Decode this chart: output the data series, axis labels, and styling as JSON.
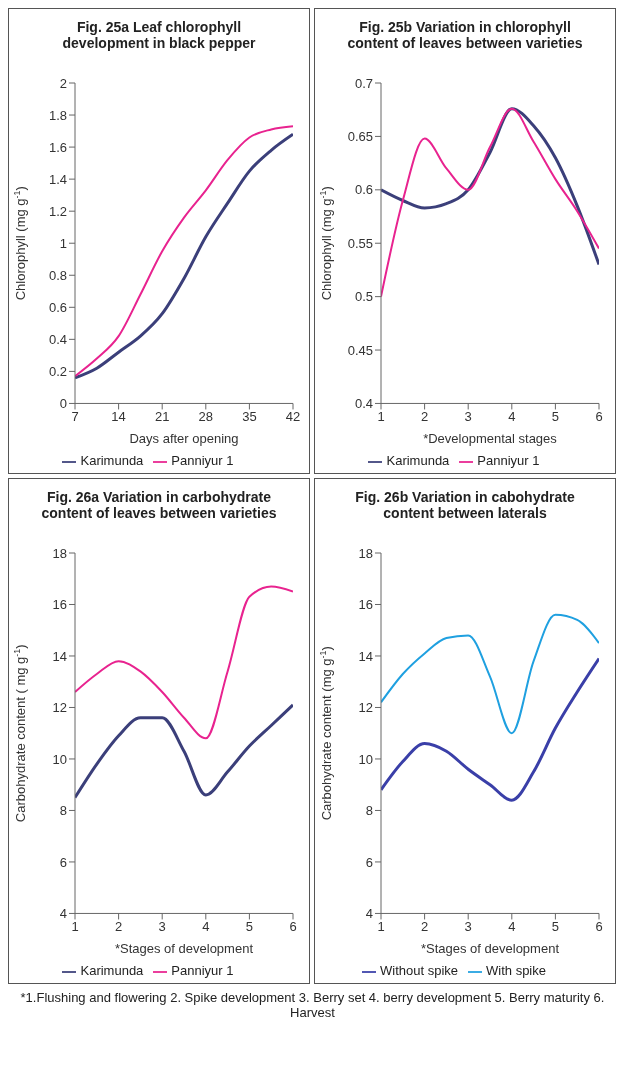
{
  "chart_data": [
    {
      "type": "line",
      "title": "Fig. 25a Leaf chlorophyll development in black pepper",
      "xlabel": "Days after opening",
      "ylabel": "Chlorophyll (mg g$^{-1}$)",
      "x": [
        7,
        10.5,
        14,
        17.5,
        21,
        24.5,
        28,
        31.5,
        35,
        38.5,
        42
      ],
      "series": [
        {
          "name": "Karimunda",
          "color": "#3b3f7a",
          "values": [
            0.16,
            0.22,
            0.32,
            0.42,
            0.56,
            0.78,
            1.04,
            1.25,
            1.45,
            1.58,
            1.68
          ]
        },
        {
          "name": "Panniyur 1",
          "color": "#e8238f",
          "values": [
            0.17,
            0.28,
            0.42,
            0.68,
            0.95,
            1.16,
            1.33,
            1.52,
            1.66,
            1.71,
            1.73
          ]
        }
      ],
      "xlim": [
        7,
        42
      ],
      "xticks": [
        7,
        14,
        21,
        28,
        35,
        42
      ],
      "ylim": [
        0,
        2
      ],
      "yticks": [
        0,
        0.2,
        0.4,
        0.6,
        0.8,
        1,
        1.2,
        1.4,
        1.6,
        1.8,
        2
      ],
      "legend": "bottom",
      "grid": false
    },
    {
      "type": "line",
      "title": "Fig. 25b Variation in chlorophyll content of leaves between varieties",
      "xlabel": "*Developmental stages",
      "ylabel": "Chlorophyll (mg g$^{-1}$)",
      "x": [
        1,
        1.5,
        2,
        2.5,
        3,
        3.5,
        4,
        4.5,
        5,
        5.5,
        6
      ],
      "series": [
        {
          "name": "Karimunda",
          "color": "#3b3f7a",
          "values": [
            0.6,
            0.59,
            0.583,
            0.587,
            0.6,
            0.635,
            0.676,
            0.66,
            0.63,
            0.585,
            0.53
          ]
        },
        {
          "name": "Panniyur 1",
          "color": "#e8238f",
          "values": [
            0.5,
            0.59,
            0.648,
            0.62,
            0.6,
            0.64,
            0.676,
            0.645,
            0.61,
            0.58,
            0.545
          ]
        }
      ],
      "xlim": [
        1,
        6
      ],
      "xticks": [
        1,
        2,
        3,
        4,
        5,
        6
      ],
      "ylim": [
        0.4,
        0.7
      ],
      "yticks": [
        0.4,
        0.45,
        0.5,
        0.55,
        0.6,
        0.65,
        0.7
      ],
      "legend": "bottom",
      "grid": false
    },
    {
      "type": "line",
      "title": "Fig. 26a Variation in carbohydrate content of leaves between varieties",
      "xlabel": "*Stages of development",
      "ylabel": "Carbohydrate content ( mg g$^{-1}$)",
      "x": [
        1,
        1.5,
        2,
        2.5,
        3,
        3.5,
        4,
        4.5,
        5,
        5.5,
        6
      ],
      "series": [
        {
          "name": "Karimunda",
          "color": "#3b3f7a",
          "values": [
            8.5,
            9.8,
            10.9,
            11.6,
            11.6,
            10.3,
            8.6,
            9.5,
            10.5,
            11.3,
            12.1
          ]
        },
        {
          "name": "Panniyur 1",
          "color": "#e8238f",
          "values": [
            12.6,
            13.3,
            13.8,
            13.4,
            12.6,
            11.6,
            10.8,
            13.4,
            16.3,
            16.7,
            16.5
          ]
        }
      ],
      "xlim": [
        1,
        6
      ],
      "xticks": [
        1,
        2,
        3,
        4,
        5,
        6
      ],
      "ylim": [
        4,
        18
      ],
      "yticks": [
        4,
        6,
        8,
        10,
        12,
        14,
        16,
        18
      ],
      "legend": "bottom",
      "grid": false
    },
    {
      "type": "line",
      "title": "Fig. 26b Variation in cabohydrate content between laterals",
      "xlabel": "*Stages of development",
      "ylabel": "Carbohydrate content (mg g$^{-1}$)",
      "x": [
        1,
        1.5,
        2,
        2.5,
        3,
        3.5,
        4,
        4.5,
        5,
        5.5,
        6
      ],
      "series": [
        {
          "name": "Without spike",
          "color": "#3a3fa8",
          "values": [
            8.8,
            9.9,
            10.6,
            10.3,
            9.6,
            9.0,
            8.4,
            9.5,
            11.2,
            12.6,
            13.9
          ]
        },
        {
          "name": "With spike",
          "color": "#1fa0e0",
          "values": [
            12.2,
            13.3,
            14.1,
            14.7,
            14.8,
            13.2,
            11.0,
            13.8,
            15.6,
            15.4,
            14.5
          ]
        }
      ],
      "xlim": [
        1,
        6
      ],
      "xticks": [
        1,
        2,
        3,
        4,
        5,
        6
      ],
      "ylim": [
        4,
        18
      ],
      "yticks": [
        4,
        6,
        8,
        10,
        12,
        14,
        16,
        18
      ],
      "legend": "bottom",
      "grid": false,
      "annotations": [
        "*1.Flushing and flowering 2. Spike development 3. Berry set 4.  berry development   5. Berry maturity  6. Harvest"
      ]
    }
  ]
}
